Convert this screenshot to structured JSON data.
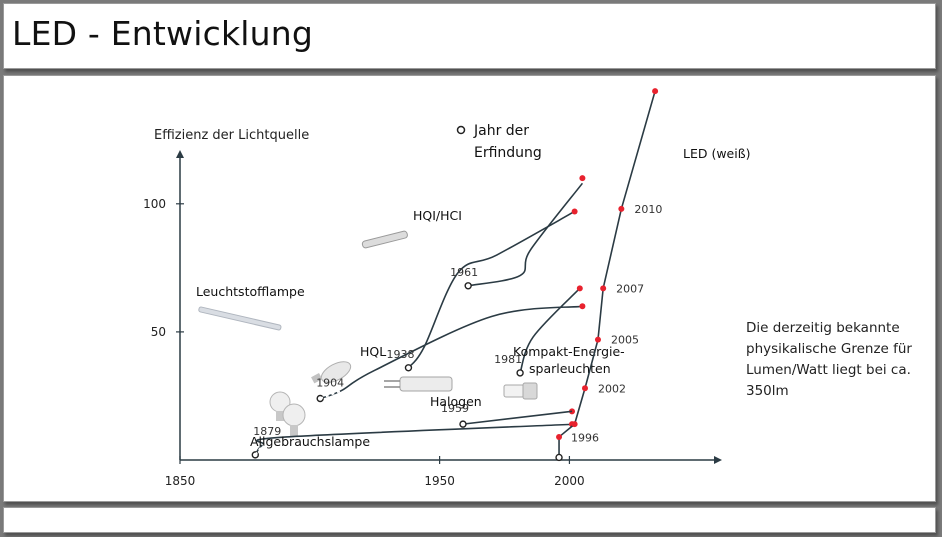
{
  "slide": {
    "title": "LED - Entwicklung",
    "note": "Die derzeitig bekannte physikalische Grenze für Lumen/Watt liegt bei ca. 350lm"
  },
  "chart_data": {
    "type": "line",
    "ylabel": "Effizienz der Lichtquelle",
    "legend": {
      "marker": "open-circle",
      "label": "Jahr der Erfindung"
    },
    "x_ticks": [
      1850,
      1950,
      2000
    ],
    "y_ticks": [
      50,
      100
    ],
    "xlim": [
      1850,
      2058
    ],
    "ylim": [
      0,
      121
    ],
    "series": [
      {
        "name": "Allgebrauchslampe",
        "color": "#2b3b44",
        "invention_year": "1879",
        "invention": [
          1879,
          2
        ],
        "points": [
          [
            1879,
            2
          ],
          [
            1882,
            6
          ],
          [
            1891,
            9
          ],
          [
            2003,
            14
          ]
        ],
        "end_points": [
          [
            2001,
            14
          ],
          [
            2001,
            19
          ]
        ]
      },
      {
        "name": "Halogen",
        "color": "#2b3b44",
        "invention_year": "1959",
        "invention": [
          1959,
          14
        ],
        "points": [
          [
            1959,
            14
          ],
          [
            2001,
            19
          ]
        ]
      },
      {
        "name": "HQL",
        "color": "#2b3b44",
        "invention_year": "1904",
        "invention": [
          1904,
          24
        ],
        "points": [
          [
            1904,
            24
          ],
          [
            1912,
            27
          ],
          [
            1925,
            35
          ],
          [
            1970,
            56
          ],
          [
            2005,
            60
          ]
        ],
        "end_points": [
          [
            2005,
            60
          ]
        ]
      },
      {
        "name": "Leuchtstofflampe",
        "color": "#2b3b44",
        "invention_year": "1938",
        "invention": [
          1938,
          36
        ],
        "points": [
          [
            1938,
            36
          ],
          [
            1944,
            44
          ],
          [
            1957,
            73
          ],
          [
            1972,
            80
          ],
          [
            2002,
            97
          ]
        ],
        "end_points": [
          [
            2002,
            97
          ],
          [
            2005,
            110
          ]
        ]
      },
      {
        "name": "HQI/HCI",
        "color": "#2b3b44",
        "invention_year": "1961",
        "invention": [
          1961,
          68
        ],
        "points": [
          [
            1961,
            68
          ],
          [
            1981,
            72
          ],
          [
            1985,
            82
          ],
          [
            2005,
            108
          ]
        ]
      },
      {
        "name": "Kompakt-Energie-sparleuchten",
        "color": "#2b3b44",
        "invention_year": "1981",
        "invention": [
          1981,
          34
        ],
        "points": [
          [
            1981,
            34
          ],
          [
            1986,
            48
          ],
          [
            2004,
            67
          ]
        ],
        "end_points": [
          [
            2004,
            67
          ]
        ]
      },
      {
        "name": "LED (weiß)",
        "color": "#2b3b44",
        "invention_year": "1996",
        "invention": [
          1996,
          1
        ],
        "points": [
          [
            1996,
            1
          ],
          [
            1996,
            9
          ],
          [
            2002,
            14
          ],
          [
            2006,
            28
          ],
          [
            2011,
            47
          ],
          [
            2013,
            67
          ],
          [
            2020,
            98
          ],
          [
            2033,
            144
          ]
        ],
        "year_labels": [
          "1996",
          "2002",
          "2005",
          "2007",
          "2010"
        ]
      }
    ],
    "point_color": "#e8222e",
    "grid": false
  }
}
